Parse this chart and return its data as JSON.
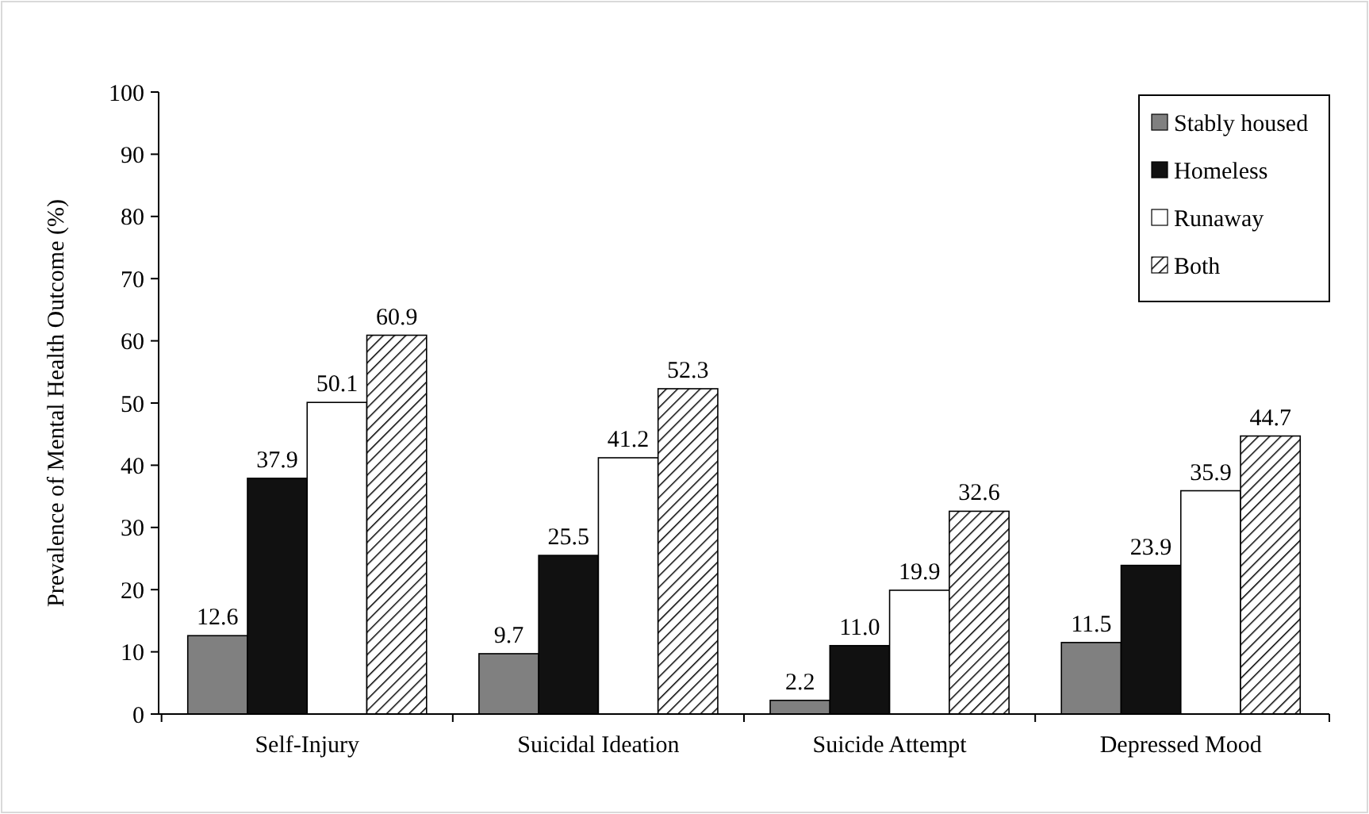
{
  "chart_data": {
    "type": "bar",
    "ylabel": "Prevalence of Mental Health Outcome (%)",
    "categories": [
      "Self-Injury",
      "Suicidal Ideation",
      "Suicide Attempt",
      "Depressed Mood"
    ],
    "series": [
      {
        "name": "Stably housed",
        "color": "#808080",
        "values": [
          12.6,
          9.7,
          2.2,
          11.5
        ],
        "value_labels": [
          "12.6",
          "9.7",
          "2.2",
          "11.5"
        ]
      },
      {
        "name": "Homeless",
        "color": "#111111",
        "values": [
          37.9,
          25.5,
          11.0,
          23.9
        ],
        "value_labels": [
          "37.9",
          "25.5",
          "11.0",
          "23.9"
        ]
      },
      {
        "name": "Runaway",
        "color": "#ffffff",
        "values": [
          50.1,
          41.2,
          19.9,
          35.9
        ],
        "value_labels": [
          "50.1",
          "41.2",
          "19.9",
          "35.9"
        ]
      },
      {
        "name": "Both",
        "color": "#000000",
        "values": [
          60.9,
          52.3,
          32.6,
          44.7
        ],
        "value_labels": [
          "60.9",
          "52.3",
          "32.6",
          "44.7"
        ]
      }
    ],
    "ylim": [
      0,
      100
    ],
    "yticks": [
      0,
      10,
      20,
      30,
      40,
      50,
      60,
      70,
      80,
      90,
      100
    ],
    "grid": false,
    "legend": "top right"
  }
}
